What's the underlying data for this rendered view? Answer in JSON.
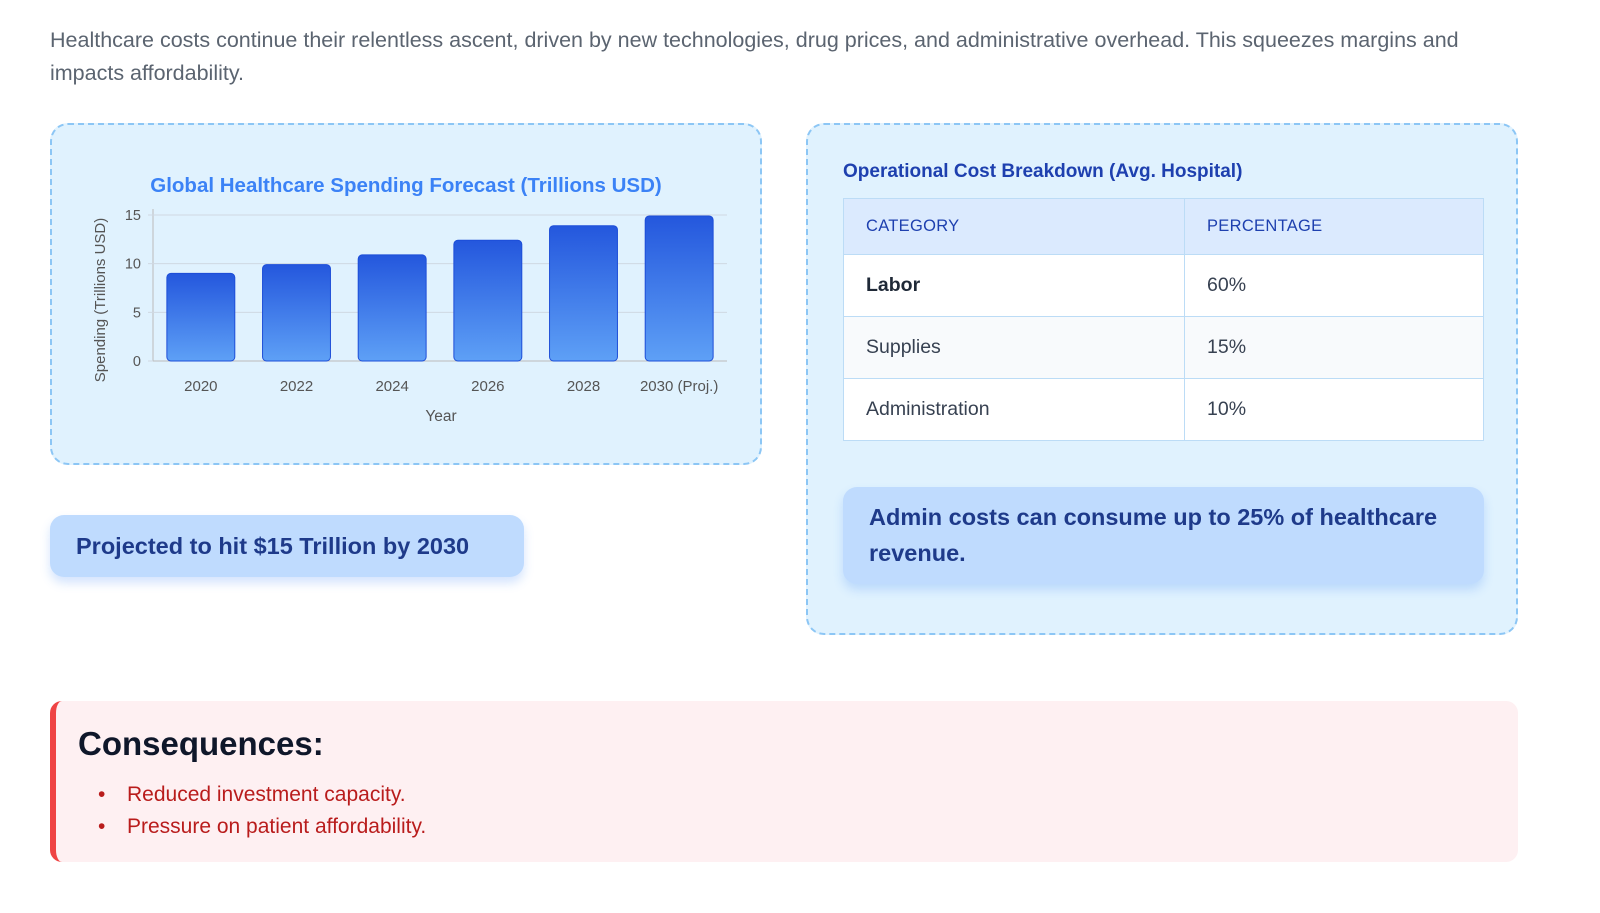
{
  "intro_text": "Healthcare costs continue their relentless ascent, driven by new technologies, drug prices, and administrative overhead. This squeezes margins and impacts affordability.",
  "chart_data": {
    "type": "bar",
    "title": "Global Healthcare Spending Forecast (Trillions USD)",
    "xlabel": "Year",
    "ylabel": "Spending (Trillions USD)",
    "categories": [
      "2020",
      "2022",
      "2024",
      "2026",
      "2028",
      "2030 (Proj.)"
    ],
    "values": [
      9.0,
      9.9,
      10.9,
      12.4,
      13.9,
      14.9
    ],
    "ylim": [
      0,
      15
    ],
    "yticks": [
      0,
      5,
      10,
      15
    ],
    "grid": true,
    "colors": {
      "bar_top": "#2457dd",
      "bar_bottom": "#5ea0f6",
      "title": "#3b82f6"
    }
  },
  "projection_callout": "Projected to hit $15 Trillion by 2030",
  "cost_table": {
    "title": "Operational Cost Breakdown (Avg. Hospital)",
    "headers": [
      "CATEGORY",
      "PERCENTAGE"
    ],
    "rows": [
      {
        "category": "Labor",
        "percentage": "60%"
      },
      {
        "category": "Supplies",
        "percentage": "15%"
      },
      {
        "category": "Administration",
        "percentage": "10%"
      }
    ]
  },
  "admin_callout": "Admin costs can consume up to 25% of healthcare revenue.",
  "consequences": {
    "title": "Consequences:",
    "items": [
      "Reduced investment capacity.",
      "Pressure on patient affordability."
    ],
    "accent": "#ef4444"
  }
}
